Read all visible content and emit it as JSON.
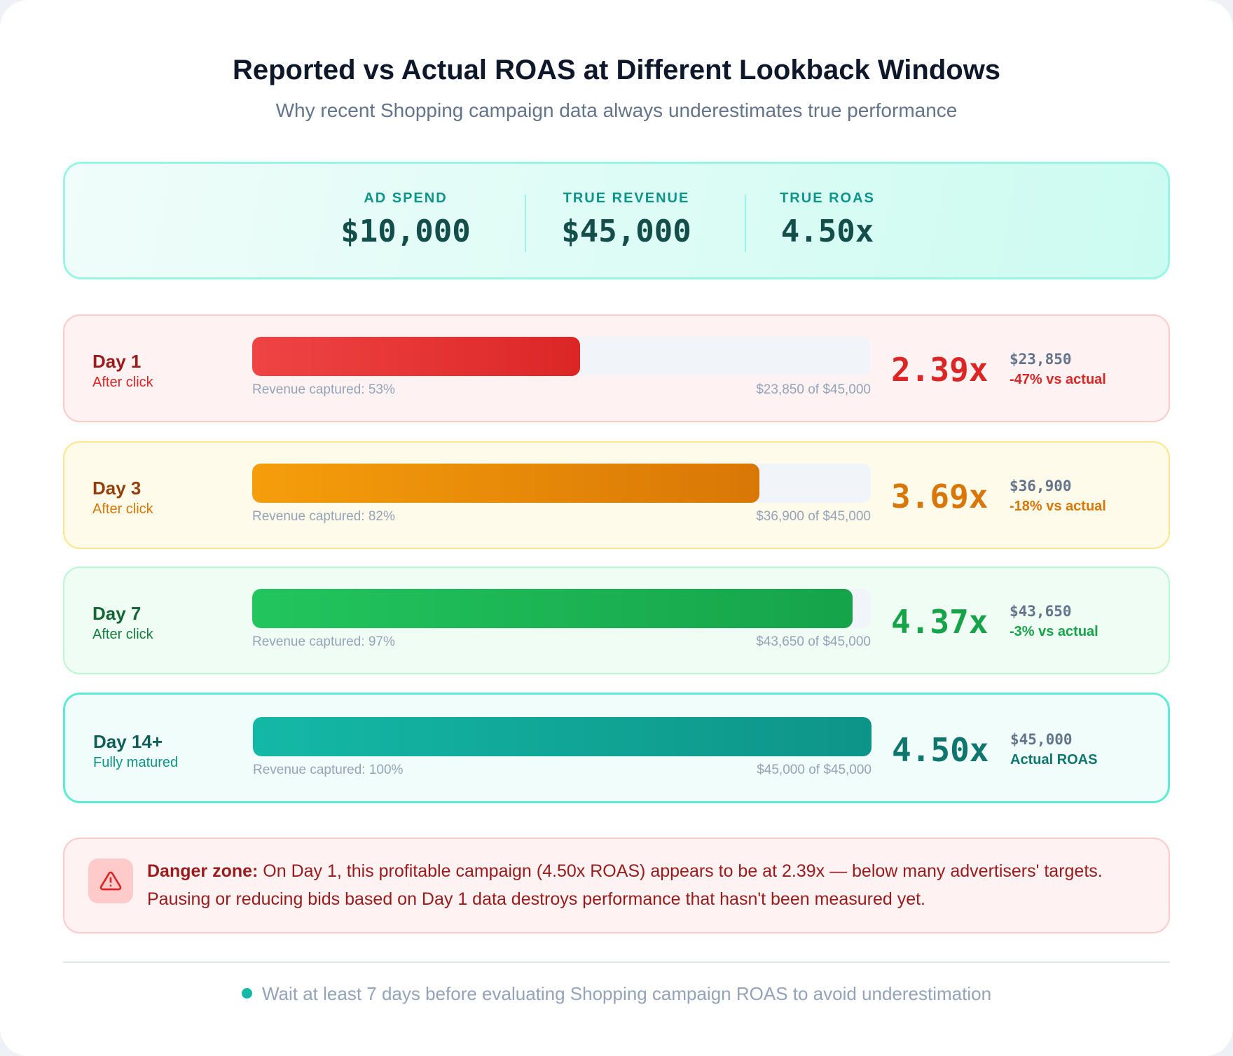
{
  "header": {
    "title": "Reported vs Actual ROAS at Different Lookback Windows",
    "subtitle": "Why recent Shopping campaign data always underestimates true performance"
  },
  "summary": {
    "stats": [
      {
        "label": "AD SPEND",
        "value": "$10,000"
      },
      {
        "label": "TRUE REVENUE",
        "value": "$45,000"
      },
      {
        "label": "TRUE ROAS",
        "value": "4.50x"
      }
    ]
  },
  "rows": [
    {
      "day": "Day 1",
      "sub": "After click",
      "captured_percent": 53,
      "caption": "Revenue captured: 53%",
      "of_text": "$23,850 of $45,000",
      "roas": "2.39x",
      "amount": "$23,850",
      "diff": "-47% vs actual",
      "colors": {
        "bg": "#fef2f2",
        "border": "#fecaca",
        "title": "#991b1b",
        "sub": "#dc2626",
        "bar_from": "#ef4444",
        "bar_to": "#dc2626",
        "value": "#dc2626"
      }
    },
    {
      "day": "Day 3",
      "sub": "After click",
      "captured_percent": 82,
      "caption": "Revenue captured: 82%",
      "of_text": "$36,900 of $45,000",
      "roas": "3.69x",
      "amount": "$36,900",
      "diff": "-18% vs actual",
      "colors": {
        "bg": "#fffbeb",
        "border": "#fde68a",
        "title": "#92400e",
        "sub": "#d97706",
        "bar_from": "#f59e0b",
        "bar_to": "#d97706",
        "value": "#d97706"
      }
    },
    {
      "day": "Day 7",
      "sub": "After click",
      "captured_percent": 97,
      "caption": "Revenue captured: 97%",
      "of_text": "$43,650 of $45,000",
      "roas": "4.37x",
      "amount": "$43,650",
      "diff": "-3% vs actual",
      "colors": {
        "bg": "#f0fdf4",
        "border": "#bbf7d0",
        "title": "#166534",
        "sub": "#15803d",
        "bar_from": "#22c55e",
        "bar_to": "#16a34a",
        "value": "#16a34a"
      }
    },
    {
      "day": "Day 14+",
      "sub": "Fully matured",
      "captured_percent": 100,
      "caption": "Revenue captured: 100%",
      "of_text": "$45,000 of $45,000",
      "roas": "4.50x",
      "amount": "$45,000",
      "diff": "Actual ROAS",
      "colors": {
        "bg": "#f0fdfa",
        "border": "#5eead4",
        "title": "#115e59",
        "sub": "#0d9488",
        "bar_from": "#14b8a6",
        "bar_to": "#0d9488",
        "value": "#0f766e"
      }
    }
  ],
  "danger": {
    "icon": "warning-triangle-icon",
    "label": "Danger zone:",
    "text": " On Day 1, this profitable campaign (4.50x ROAS) appears to be at 2.39x — below many advertisers' targets. Pausing or reducing bids based on Day 1 data destroys performance that hasn't been measured yet."
  },
  "footer": {
    "text": "Wait at least 7 days before evaluating Shopping campaign ROAS to avoid underestimation"
  }
}
